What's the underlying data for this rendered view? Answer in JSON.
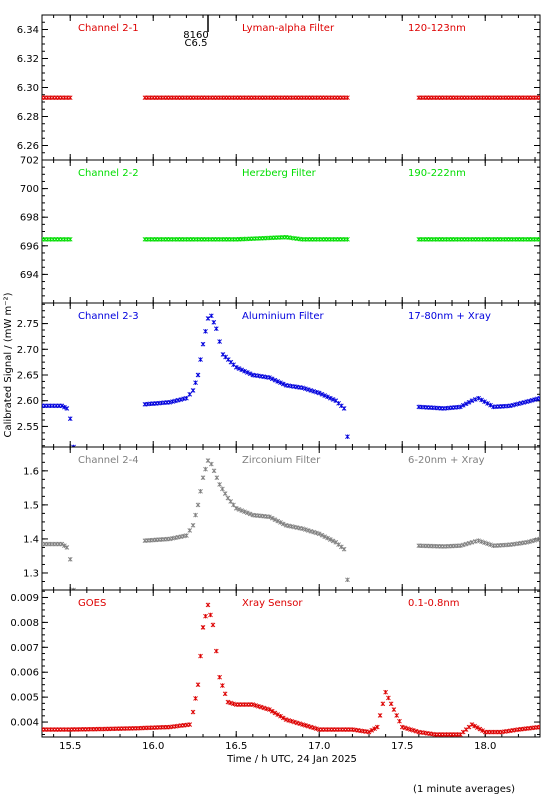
{
  "figure": {
    "ylabel": "Calibrated Signal / (mW m⁻²)",
    "xlabel": "Time / h UTC, 24 Jan 2025",
    "footnote": "(1 minute averages)",
    "marker_label": "8160",
    "marker_label2": "C6.5"
  },
  "chart_data": [
    {
      "type": "scatter",
      "labels": [
        "Channel 2-1",
        "Lyman-alpha Filter",
        "120-123nm"
      ],
      "color": "#dd0000",
      "ylim": [
        6.25,
        6.35
      ],
      "yticks": [
        6.26,
        6.28,
        6.3,
        6.32,
        6.34
      ],
      "ytick_labels": [
        "6.26",
        "6.28",
        "6.30",
        "6.32",
        "6.34"
      ],
      "series": [
        {
          "segments": [
            [
              [
                15.33,
                6.293
              ],
              [
                15.5,
                6.293
              ]
            ],
            [
              [
                15.95,
                6.293
              ],
              [
                16.5,
                6.293
              ],
              [
                17.0,
                6.293
              ],
              [
                17.17,
                6.293
              ]
            ],
            [
              [
                17.6,
                6.293
              ],
              [
                18.0,
                6.293
              ],
              [
                18.33,
                6.293
              ]
            ]
          ]
        }
      ]
    },
    {
      "type": "scatter",
      "labels": [
        "Channel 2-2",
        "Herzberg Filter",
        "190-222nm"
      ],
      "color": "#00dd00",
      "ylim": [
        692.0,
        702.0
      ],
      "yticks": [
        694,
        696,
        698,
        700,
        702
      ],
      "ytick_labels": [
        "694",
        "696",
        "698",
        "700",
        "702"
      ],
      "series": [
        {
          "segments": [
            [
              [
                15.33,
                696.45
              ],
              [
                15.5,
                696.45
              ]
            ],
            [
              [
                15.95,
                696.45
              ],
              [
                16.5,
                696.45
              ],
              [
                16.8,
                696.6
              ],
              [
                16.9,
                696.45
              ],
              [
                17.17,
                696.45
              ]
            ],
            [
              [
                17.6,
                696.45
              ],
              [
                18.0,
                696.45
              ],
              [
                18.33,
                696.45
              ]
            ]
          ]
        }
      ]
    },
    {
      "type": "scatter",
      "labels": [
        "Channel 2-3",
        "Aluminium Filter",
        "17-80nm + Xray"
      ],
      "color": "#0000dd",
      "ylim": [
        2.51,
        2.79
      ],
      "yticks": [
        2.55,
        2.6,
        2.65,
        2.7,
        2.75
      ],
      "ytick_labels": [
        "2.55",
        "2.60",
        "2.65",
        "2.70",
        "2.75"
      ],
      "series": [
        {
          "segments": [
            [
              [
                15.33,
                2.59
              ],
              [
                15.45,
                2.59
              ],
              [
                15.48,
                2.585
              ],
              [
                15.5,
                2.565
              ],
              [
                15.52,
                2.51
              ]
            ],
            [
              [
                15.95,
                2.593
              ],
              [
                16.1,
                2.597
              ],
              [
                16.2,
                2.605
              ],
              [
                16.24,
                2.62
              ],
              [
                16.27,
                2.65
              ],
              [
                16.3,
                2.71
              ],
              [
                16.33,
                2.76
              ],
              [
                16.35,
                2.765
              ],
              [
                16.38,
                2.74
              ],
              [
                16.42,
                2.69
              ],
              [
                16.5,
                2.665
              ],
              [
                16.6,
                2.65
              ],
              [
                16.7,
                2.645
              ],
              [
                16.8,
                2.63
              ],
              [
                16.9,
                2.625
              ],
              [
                17.0,
                2.615
              ],
              [
                17.1,
                2.6
              ],
              [
                17.15,
                2.585
              ],
              [
                17.17,
                2.53
              ]
            ],
            [
              [
                17.6,
                2.588
              ],
              [
                17.75,
                2.585
              ],
              [
                17.85,
                2.588
              ],
              [
                17.92,
                2.6
              ],
              [
                17.96,
                2.605
              ],
              [
                18.05,
                2.588
              ],
              [
                18.15,
                2.59
              ],
              [
                18.25,
                2.598
              ],
              [
                18.33,
                2.605
              ]
            ]
          ]
        }
      ]
    },
    {
      "type": "scatter",
      "labels": [
        "Channel 2-4",
        "Zirconium Filter",
        "6-20nm + Xray"
      ],
      "color": "#808080",
      "ylim": [
        1.25,
        1.67
      ],
      "yticks": [
        1.3,
        1.4,
        1.5,
        1.6
      ],
      "ytick_labels": [
        "1.3",
        "1.4",
        "1.5",
        "1.6"
      ],
      "series": [
        {
          "segments": [
            [
              [
                15.33,
                1.385
              ],
              [
                15.45,
                1.385
              ],
              [
                15.48,
                1.375
              ],
              [
                15.5,
                1.34
              ],
              [
                15.52,
                1.25
              ]
            ],
            [
              [
                15.95,
                1.395
              ],
              [
                16.1,
                1.4
              ],
              [
                16.2,
                1.41
              ],
              [
                16.24,
                1.44
              ],
              [
                16.27,
                1.5
              ],
              [
                16.3,
                1.58
              ],
              [
                16.33,
                1.63
              ],
              [
                16.35,
                1.62
              ],
              [
                16.4,
                1.56
              ],
              [
                16.45,
                1.52
              ],
              [
                16.5,
                1.49
              ],
              [
                16.6,
                1.47
              ],
              [
                16.7,
                1.465
              ],
              [
                16.8,
                1.44
              ],
              [
                16.9,
                1.43
              ],
              [
                17.0,
                1.415
              ],
              [
                17.1,
                1.39
              ],
              [
                17.15,
                1.37
              ],
              [
                17.17,
                1.28
              ]
            ],
            [
              [
                17.6,
                1.38
              ],
              [
                17.75,
                1.378
              ],
              [
                17.85,
                1.38
              ],
              [
                17.92,
                1.39
              ],
              [
                17.96,
                1.395
              ],
              [
                18.05,
                1.38
              ],
              [
                18.15,
                1.383
              ],
              [
                18.25,
                1.39
              ],
              [
                18.33,
                1.4
              ]
            ]
          ]
        }
      ]
    },
    {
      "type": "scatter",
      "labels": [
        "GOES",
        "Xray Sensor",
        "0.1-0.8nm"
      ],
      "color": "#dd0000",
      "ylim": [
        0.0034,
        0.0093
      ],
      "yticks": [
        0.004,
        0.005,
        0.006,
        0.007,
        0.008,
        0.009
      ],
      "ytick_labels": [
        "0.004",
        "0.005",
        "0.006",
        "0.007",
        "0.008",
        "0.009"
      ],
      "series": [
        {
          "segments": [
            [
              [
                15.33,
                0.0037
              ],
              [
                15.5,
                0.0037
              ],
              [
                15.7,
                0.00372
              ],
              [
                15.9,
                0.00375
              ],
              [
                16.1,
                0.0038
              ],
              [
                16.22,
                0.0039
              ],
              [
                16.24,
                0.0044
              ],
              [
                16.27,
                0.0055
              ],
              [
                16.3,
                0.0078
              ],
              [
                16.33,
                0.0087
              ],
              [
                16.36,
                0.0079
              ],
              [
                16.4,
                0.0058
              ],
              [
                16.45,
                0.0048
              ],
              [
                16.5,
                0.0047
              ],
              [
                16.6,
                0.0047
              ],
              [
                16.7,
                0.0045
              ],
              [
                16.8,
                0.0041
              ],
              [
                16.9,
                0.0039
              ],
              [
                17.0,
                0.0037
              ],
              [
                17.2,
                0.0037
              ],
              [
                17.3,
                0.0036
              ],
              [
                17.35,
                0.0038
              ],
              [
                17.4,
                0.0052
              ],
              [
                17.45,
                0.0045
              ],
              [
                17.5,
                0.0038
              ],
              [
                17.6,
                0.0036
              ],
              [
                17.7,
                0.0035
              ],
              [
                17.85,
                0.0035
              ],
              [
                17.92,
                0.0039
              ],
              [
                18.0,
                0.0036
              ],
              [
                18.1,
                0.0036
              ],
              [
                18.2,
                0.0037
              ],
              [
                18.33,
                0.0038
              ]
            ]
          ]
        }
      ]
    }
  ],
  "x_axis": {
    "xlim": [
      15.33,
      18.33
    ],
    "ticks": [
      15.5,
      16.0,
      16.5,
      17.0,
      17.5,
      18.0
    ],
    "tick_labels": [
      "15.5",
      "16.0",
      "16.5",
      "17.0",
      "17.5",
      "18.0"
    ]
  }
}
